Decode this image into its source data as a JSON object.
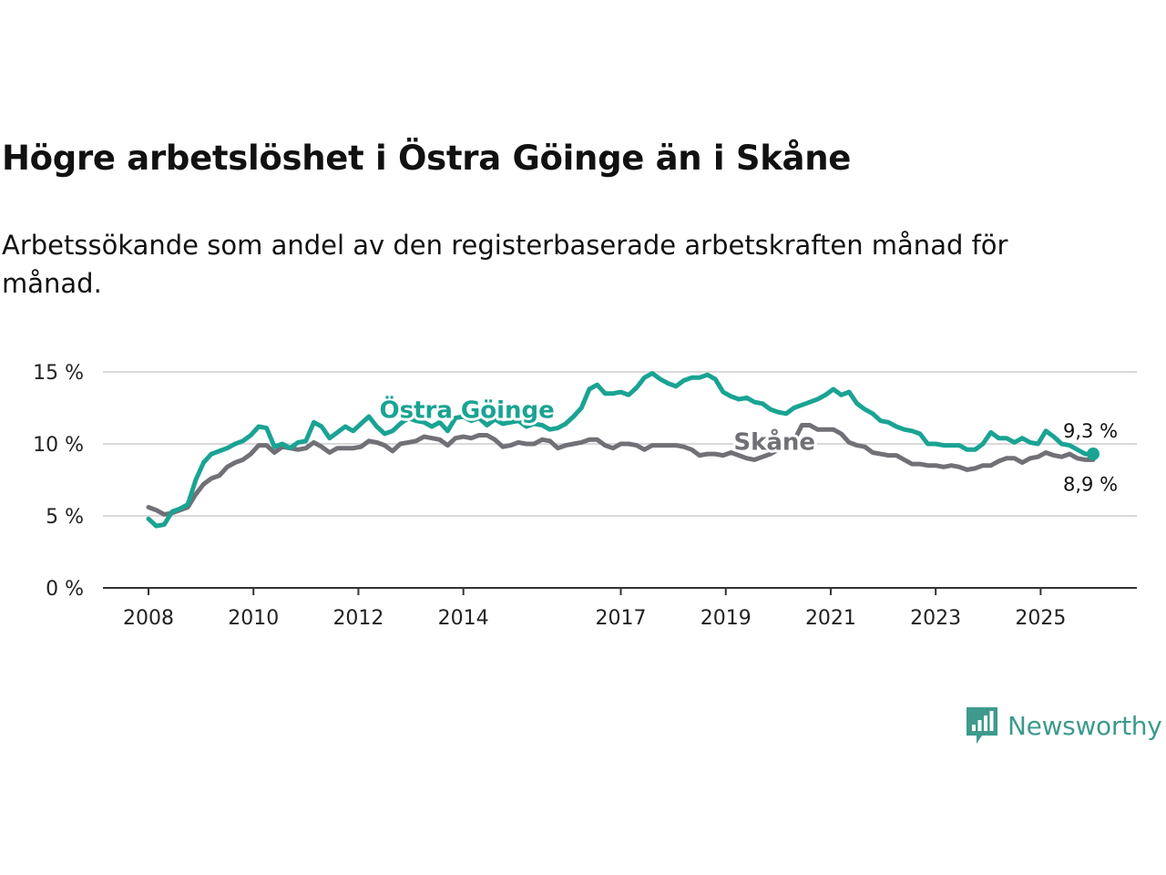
{
  "title": "Högre arbetslöshet i Östra Göinge än i Skåne",
  "subtitle": "Arbetssökande som andel av den registerbaserade arbetskraften månad för månad.",
  "brand": {
    "name": "Newsworthy",
    "color": "#3d9a8c"
  },
  "chart_data": {
    "type": "line",
    "ylim": [
      0,
      15
    ],
    "xlim": [
      2008.0,
      2026.6
    ],
    "yticks": [
      {
        "value": 0,
        "label": "0 %"
      },
      {
        "value": 5,
        "label": "5 %"
      },
      {
        "value": 10,
        "label": "10 %"
      },
      {
        "value": 15,
        "label": "15 %"
      }
    ],
    "xticks": [
      {
        "value": 2008.0,
        "label": "2008"
      },
      {
        "value": 2010.0,
        "label": "2010"
      },
      {
        "value": 2012.0,
        "label": "2012"
      },
      {
        "value": 2014.0,
        "label": "2014"
      },
      {
        "value": 2017.0,
        "label": "2017"
      },
      {
        "value": 2019.0,
        "label": "2019"
      },
      {
        "value": 2021.0,
        "label": "2021"
      },
      {
        "value": 2023.0,
        "label": "2023"
      },
      {
        "value": 2025.0,
        "label": "2025"
      }
    ],
    "grid": true,
    "series": [
      {
        "name": "Skåne",
        "color": "#707076",
        "end_label": "8,9 %",
        "points": [
          [
            2008.0,
            5.6
          ],
          [
            2008.15,
            5.4
          ],
          [
            2008.3,
            5.1
          ],
          [
            2008.45,
            5.2
          ],
          [
            2008.6,
            5.4
          ],
          [
            2008.75,
            5.6
          ],
          [
            2008.9,
            6.5
          ],
          [
            2009.05,
            7.2
          ],
          [
            2009.2,
            7.6
          ],
          [
            2009.35,
            7.8
          ],
          [
            2009.5,
            8.4
          ],
          [
            2009.65,
            8.7
          ],
          [
            2009.8,
            8.9
          ],
          [
            2009.95,
            9.3
          ],
          [
            2010.1,
            9.9
          ],
          [
            2010.25,
            9.9
          ],
          [
            2010.4,
            9.4
          ],
          [
            2010.55,
            9.8
          ],
          [
            2010.7,
            9.7
          ],
          [
            2010.85,
            9.6
          ],
          [
            2011.0,
            9.7
          ],
          [
            2011.15,
            10.1
          ],
          [
            2011.3,
            9.8
          ],
          [
            2011.45,
            9.4
          ],
          [
            2011.6,
            9.7
          ],
          [
            2011.75,
            9.7
          ],
          [
            2011.9,
            9.7
          ],
          [
            2012.05,
            9.8
          ],
          [
            2012.2,
            10.2
          ],
          [
            2012.35,
            10.1
          ],
          [
            2012.5,
            9.9
          ],
          [
            2012.65,
            9.5
          ],
          [
            2012.8,
            10.0
          ],
          [
            2012.95,
            10.1
          ],
          [
            2013.1,
            10.2
          ],
          [
            2013.25,
            10.5
          ],
          [
            2013.4,
            10.4
          ],
          [
            2013.55,
            10.3
          ],
          [
            2013.7,
            9.9
          ],
          [
            2013.85,
            10.4
          ],
          [
            2014.0,
            10.5
          ],
          [
            2014.15,
            10.4
          ],
          [
            2014.3,
            10.6
          ],
          [
            2014.45,
            10.6
          ],
          [
            2014.6,
            10.3
          ],
          [
            2014.75,
            9.8
          ],
          [
            2014.9,
            9.9
          ],
          [
            2015.05,
            10.1
          ],
          [
            2015.2,
            10.0
          ],
          [
            2015.35,
            10.0
          ],
          [
            2015.5,
            10.3
          ],
          [
            2015.65,
            10.2
          ],
          [
            2015.8,
            9.7
          ],
          [
            2015.95,
            9.9
          ],
          [
            2016.1,
            10.0
          ],
          [
            2016.25,
            10.1
          ],
          [
            2016.4,
            10.3
          ],
          [
            2016.55,
            10.3
          ],
          [
            2016.7,
            9.9
          ],
          [
            2016.85,
            9.7
          ],
          [
            2017.0,
            10.0
          ],
          [
            2017.15,
            10.0
          ],
          [
            2017.3,
            9.9
          ],
          [
            2017.45,
            9.6
          ],
          [
            2017.6,
            9.9
          ],
          [
            2017.75,
            9.9
          ],
          [
            2017.9,
            9.9
          ],
          [
            2018.05,
            9.9
          ],
          [
            2018.2,
            9.8
          ],
          [
            2018.35,
            9.6
          ],
          [
            2018.5,
            9.2
          ],
          [
            2018.65,
            9.3
          ],
          [
            2018.8,
            9.3
          ],
          [
            2018.95,
            9.2
          ],
          [
            2019.1,
            9.4
          ],
          [
            2019.25,
            9.2
          ],
          [
            2019.4,
            9.0
          ],
          [
            2019.55,
            8.9
          ],
          [
            2019.7,
            9.1
          ],
          [
            2019.85,
            9.3
          ],
          [
            2020.0,
            9.6
          ],
          [
            2020.15,
            9.8
          ],
          [
            2020.3,
            10.2
          ],
          [
            2020.45,
            11.3
          ],
          [
            2020.6,
            11.3
          ],
          [
            2020.75,
            11.0
          ],
          [
            2020.9,
            11.0
          ],
          [
            2021.05,
            11.0
          ],
          [
            2021.2,
            10.7
          ],
          [
            2021.35,
            10.1
          ],
          [
            2021.5,
            9.9
          ],
          [
            2021.65,
            9.8
          ],
          [
            2021.8,
            9.4
          ],
          [
            2021.95,
            9.3
          ],
          [
            2022.1,
            9.2
          ],
          [
            2022.25,
            9.2
          ],
          [
            2022.4,
            8.9
          ],
          [
            2022.55,
            8.6
          ],
          [
            2022.7,
            8.6
          ],
          [
            2022.85,
            8.5
          ],
          [
            2023.0,
            8.5
          ],
          [
            2023.15,
            8.4
          ],
          [
            2023.3,
            8.5
          ],
          [
            2023.45,
            8.4
          ],
          [
            2023.6,
            8.2
          ],
          [
            2023.75,
            8.3
          ],
          [
            2023.9,
            8.5
          ],
          [
            2024.05,
            8.5
          ],
          [
            2024.2,
            8.8
          ],
          [
            2024.35,
            9.0
          ],
          [
            2024.5,
            9.0
          ],
          [
            2024.65,
            8.7
          ],
          [
            2024.8,
            9.0
          ],
          [
            2024.95,
            9.1
          ],
          [
            2025.1,
            9.4
          ],
          [
            2025.25,
            9.2
          ],
          [
            2025.4,
            9.1
          ],
          [
            2025.55,
            9.3
          ],
          [
            2025.7,
            9.0
          ],
          [
            2025.85,
            8.9
          ],
          [
            2026.0,
            8.9
          ]
        ]
      },
      {
        "name": "Östra Göinge",
        "color": "#1aa393",
        "end_label": "9,3 %",
        "points": [
          [
            2008.0,
            4.8
          ],
          [
            2008.15,
            4.3
          ],
          [
            2008.3,
            4.4
          ],
          [
            2008.45,
            5.3
          ],
          [
            2008.6,
            5.5
          ],
          [
            2008.75,
            5.8
          ],
          [
            2008.9,
            7.5
          ],
          [
            2009.05,
            8.7
          ],
          [
            2009.2,
            9.3
          ],
          [
            2009.35,
            9.5
          ],
          [
            2009.5,
            9.7
          ],
          [
            2009.65,
            10.0
          ],
          [
            2009.8,
            10.2
          ],
          [
            2009.95,
            10.6
          ],
          [
            2010.1,
            11.2
          ],
          [
            2010.25,
            11.1
          ],
          [
            2010.4,
            9.8
          ],
          [
            2010.55,
            10.0
          ],
          [
            2010.7,
            9.7
          ],
          [
            2010.85,
            10.1
          ],
          [
            2011.0,
            10.2
          ],
          [
            2011.15,
            11.5
          ],
          [
            2011.3,
            11.2
          ],
          [
            2011.45,
            10.4
          ],
          [
            2011.6,
            10.8
          ],
          [
            2011.75,
            11.2
          ],
          [
            2011.9,
            10.9
          ],
          [
            2012.05,
            11.4
          ],
          [
            2012.2,
            11.9
          ],
          [
            2012.35,
            11.2
          ],
          [
            2012.5,
            10.7
          ],
          [
            2012.65,
            10.9
          ],
          [
            2012.8,
            11.4
          ],
          [
            2012.95,
            11.8
          ],
          [
            2013.1,
            11.6
          ],
          [
            2013.25,
            11.5
          ],
          [
            2013.4,
            11.2
          ],
          [
            2013.55,
            11.5
          ],
          [
            2013.7,
            10.9
          ],
          [
            2013.85,
            11.8
          ],
          [
            2014.0,
            11.9
          ],
          [
            2014.15,
            11.6
          ],
          [
            2014.3,
            11.8
          ],
          [
            2014.45,
            11.3
          ],
          [
            2014.6,
            11.7
          ],
          [
            2014.75,
            11.4
          ],
          [
            2014.9,
            11.5
          ],
          [
            2015.05,
            11.6
          ],
          [
            2015.2,
            11.2
          ],
          [
            2015.35,
            11.4
          ],
          [
            2015.5,
            11.3
          ],
          [
            2015.65,
            11.0
          ],
          [
            2015.8,
            11.1
          ],
          [
            2015.95,
            11.4
          ],
          [
            2016.1,
            11.9
          ],
          [
            2016.25,
            12.5
          ],
          [
            2016.4,
            13.8
          ],
          [
            2016.55,
            14.1
          ],
          [
            2016.7,
            13.5
          ],
          [
            2016.85,
            13.5
          ],
          [
            2017.0,
            13.6
          ],
          [
            2017.15,
            13.4
          ],
          [
            2017.3,
            13.9
          ],
          [
            2017.45,
            14.6
          ],
          [
            2017.6,
            14.9
          ],
          [
            2017.75,
            14.5
          ],
          [
            2017.9,
            14.2
          ],
          [
            2018.05,
            14.0
          ],
          [
            2018.2,
            14.4
          ],
          [
            2018.35,
            14.6
          ],
          [
            2018.5,
            14.6
          ],
          [
            2018.65,
            14.8
          ],
          [
            2018.8,
            14.5
          ],
          [
            2018.95,
            13.6
          ],
          [
            2019.1,
            13.3
          ],
          [
            2019.25,
            13.1
          ],
          [
            2019.4,
            13.2
          ],
          [
            2019.55,
            12.9
          ],
          [
            2019.7,
            12.8
          ],
          [
            2019.85,
            12.4
          ],
          [
            2020.0,
            12.2
          ],
          [
            2020.15,
            12.1
          ],
          [
            2020.3,
            12.5
          ],
          [
            2020.45,
            12.7
          ],
          [
            2020.6,
            12.9
          ],
          [
            2020.75,
            13.1
          ],
          [
            2020.9,
            13.4
          ],
          [
            2021.05,
            13.8
          ],
          [
            2021.2,
            13.4
          ],
          [
            2021.35,
            13.6
          ],
          [
            2021.5,
            12.8
          ],
          [
            2021.65,
            12.4
          ],
          [
            2021.8,
            12.1
          ],
          [
            2021.95,
            11.6
          ],
          [
            2022.1,
            11.5
          ],
          [
            2022.25,
            11.2
          ],
          [
            2022.4,
            11.0
          ],
          [
            2022.55,
            10.9
          ],
          [
            2022.7,
            10.7
          ],
          [
            2022.85,
            10.0
          ],
          [
            2023.0,
            10.0
          ],
          [
            2023.15,
            9.9
          ],
          [
            2023.3,
            9.9
          ],
          [
            2023.45,
            9.9
          ],
          [
            2023.6,
            9.6
          ],
          [
            2023.75,
            9.6
          ],
          [
            2023.9,
            10.0
          ],
          [
            2024.05,
            10.8
          ],
          [
            2024.2,
            10.4
          ],
          [
            2024.35,
            10.4
          ],
          [
            2024.5,
            10.1
          ],
          [
            2024.65,
            10.4
          ],
          [
            2024.8,
            10.1
          ],
          [
            2024.95,
            10.0
          ],
          [
            2025.1,
            10.9
          ],
          [
            2025.25,
            10.5
          ],
          [
            2025.4,
            10.0
          ],
          [
            2025.55,
            9.9
          ],
          [
            2025.7,
            9.6
          ],
          [
            2025.85,
            9.3
          ],
          [
            2026.0,
            9.3
          ]
        ]
      }
    ],
    "inline_labels": [
      {
        "series": "Östra Göinge",
        "text": "Östra Göinge"
      },
      {
        "series": "Skåne",
        "text": "Skåne"
      }
    ]
  }
}
